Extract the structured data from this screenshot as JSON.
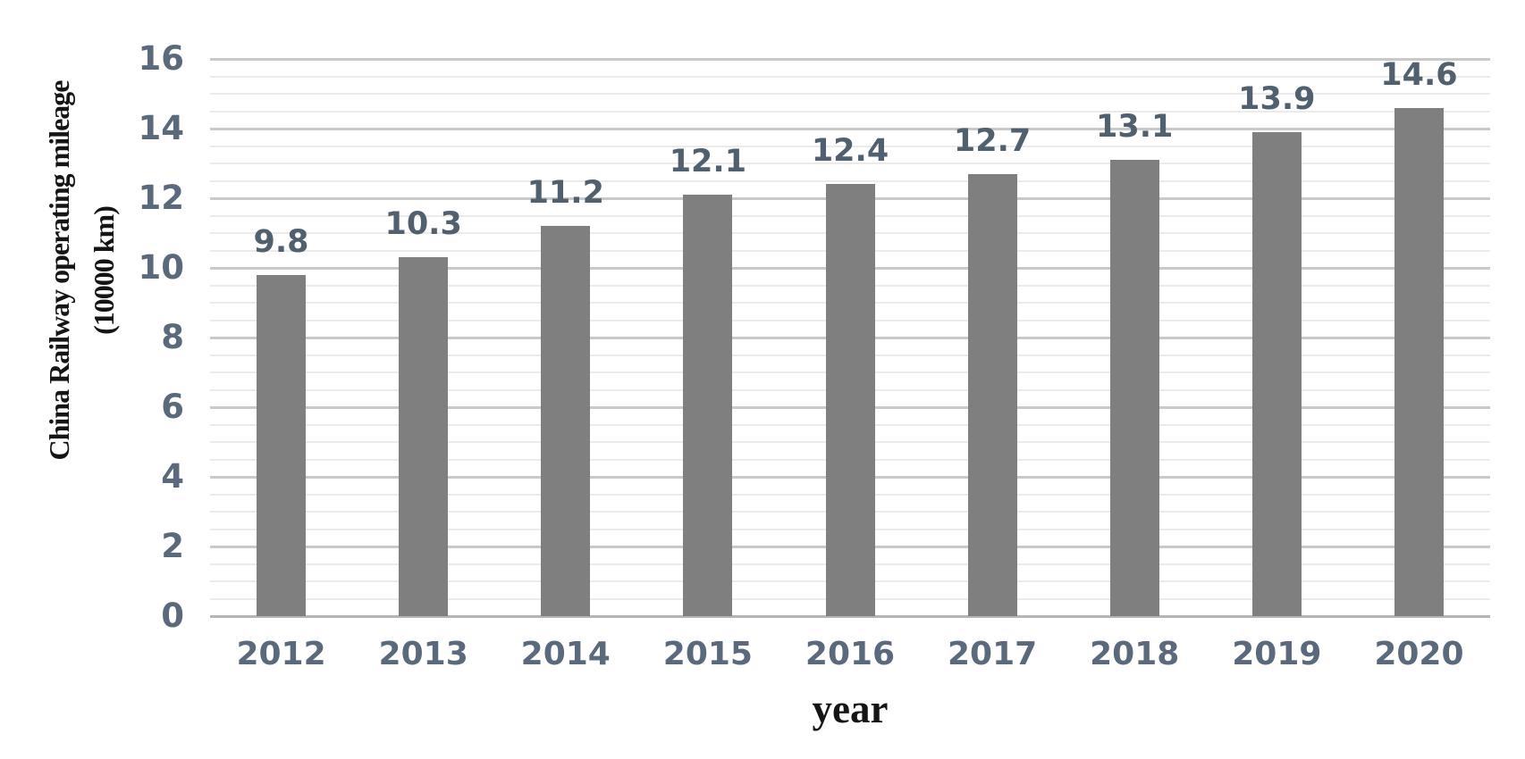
{
  "chart_data": {
    "type": "bar",
    "title": "",
    "categories": [
      "2012",
      "2013",
      "2014",
      "2015",
      "2016",
      "2017",
      "2018",
      "2019",
      "2020"
    ],
    "values": [
      9.8,
      10.3,
      11.2,
      12.1,
      12.4,
      12.7,
      13.1,
      13.9,
      14.6
    ],
    "data_labels": [
      "9.8",
      "10.3",
      "11.2",
      "12.1",
      "12.4",
      "12.7",
      "13.1",
      "13.9",
      "14.6"
    ],
    "xlabel": "year",
    "ylabel": "China Railway operating mileage (10000 km)",
    "ylabel_lines": [
      "China Railway operating mileage",
      "(10000 km)"
    ],
    "ylim": [
      0,
      16
    ],
    "ytick_interval": 2,
    "ytick_labels": [
      "0",
      "2",
      "4",
      "6",
      "8",
      "10",
      "12",
      "14",
      "16"
    ],
    "minor_gridline_interval": 0.5,
    "grid": "horizontal major and minor gridlines, no vertical gridlines",
    "legend": "none",
    "colors": {
      "bar": "#7f7f7f",
      "major_gridline": "#c9c9c9",
      "minor_gridline": "#ebebeb",
      "axis_line": "#b5b5b5",
      "tick_label": "#5a6a7c",
      "data_label": "#50606e",
      "title_text": "#151515",
      "background": "#ffffff"
    }
  }
}
